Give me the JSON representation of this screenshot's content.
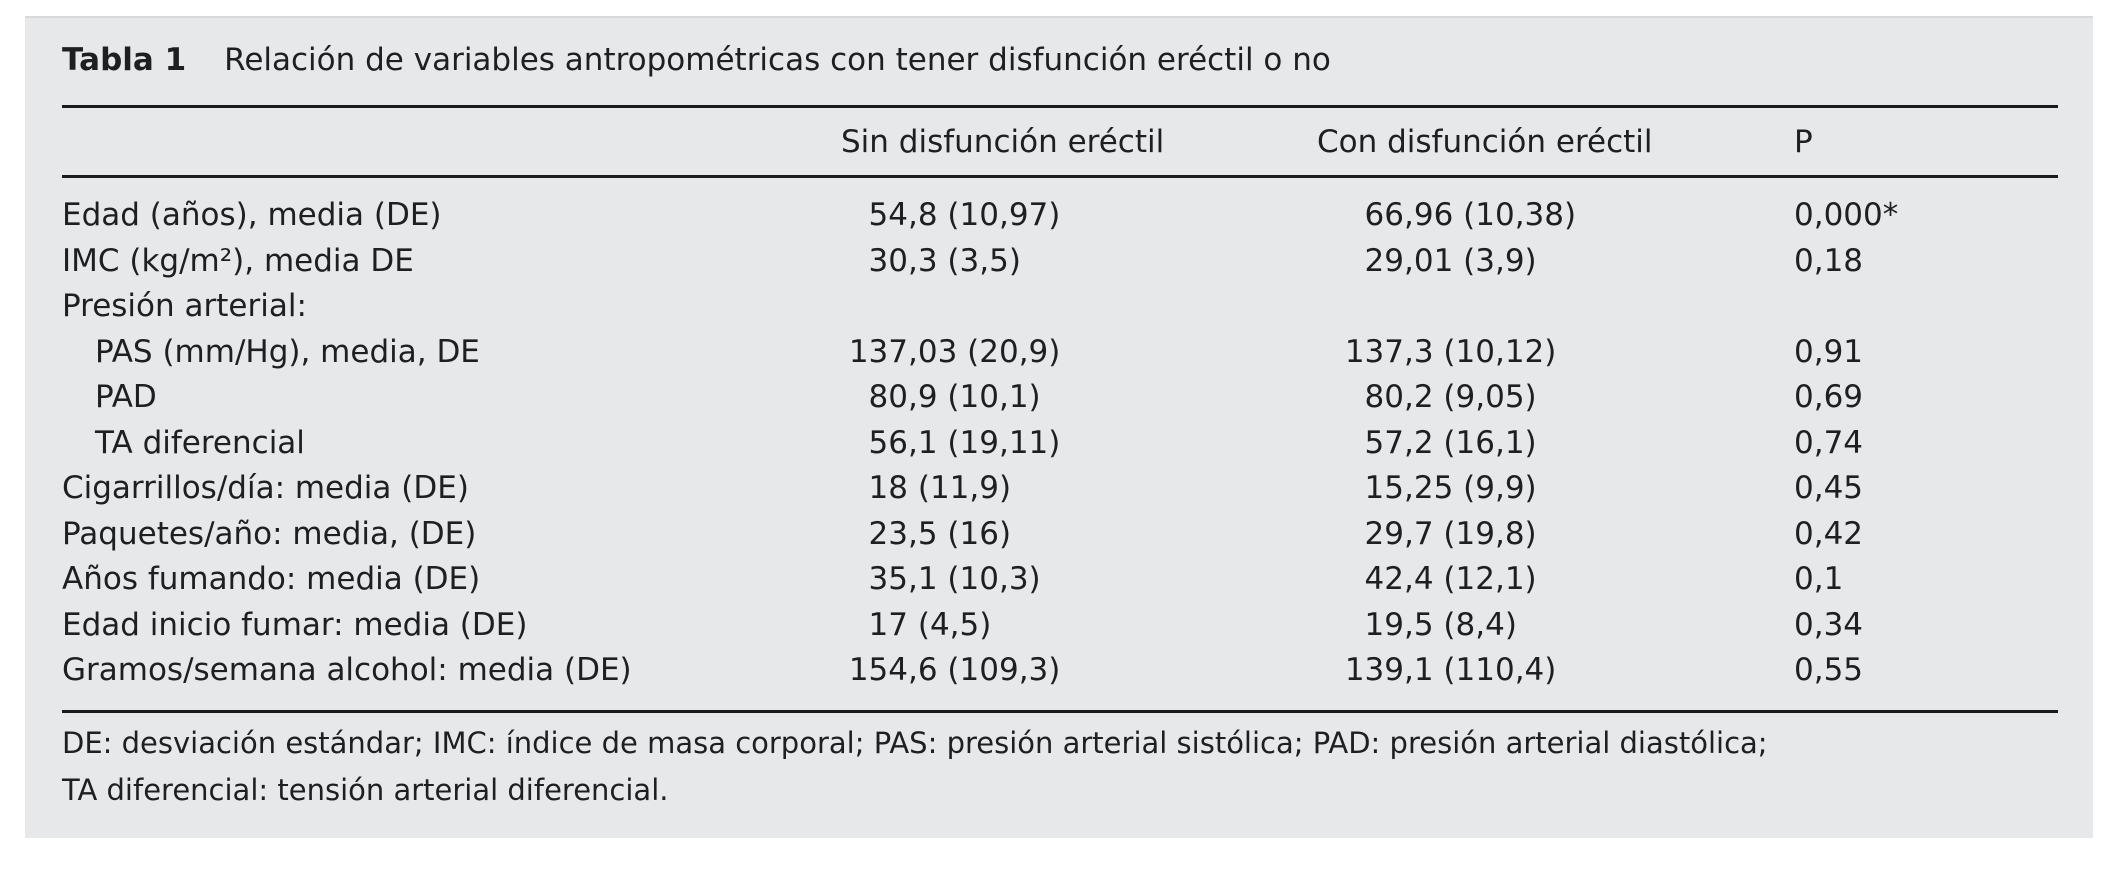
{
  "colors": {
    "panel_bg": "#e6e8e9",
    "text": "#1e1f21",
    "rule": "#1a1a1a"
  },
  "table": {
    "caption_label": "Tabla 1",
    "caption_text": "Relación de variables antropométricas con tener disfunción eréctil o no",
    "columns": [
      "Sin disfunción eréctil",
      "Con disfunción eréctil",
      "P"
    ],
    "rows": [
      {
        "label": "Edad (años), media (DE)",
        "sin": "54,8 (10,97)",
        "con": "66,96 (10,38)",
        "p": "0,000*"
      },
      {
        "label": "IMC (kg/m²), media DE",
        "sin": "30,3 (3,5)",
        "con": "29,01 (3,9)",
        "p": "0,18"
      },
      {
        "label": "Presión arterial:",
        "sin": "",
        "con": "",
        "p": ""
      },
      {
        "label": "PAS (mm/Hg), media, DE",
        "sin": "137,03 (20,9)",
        "con": "137,3 (10,12)",
        "p": "0,91"
      },
      {
        "label": "PAD",
        "sin": "80,9 (10,1)",
        "con": "80,2 (9,05)",
        "p": "0,69"
      },
      {
        "label": "TA diferencial",
        "sin": "56,1 (19,11)",
        "con": "57,2 (16,1)",
        "p": "0,74"
      },
      {
        "label": "Cigarrillos/día: media (DE)",
        "sin": "18 (11,9)",
        "con": "15,25 (9,9)",
        "p": "0,45"
      },
      {
        "label": "Paquetes/año: media, (DE)",
        "sin": "23,5 (16)",
        "con": "29,7 (19,8)",
        "p": "0,42"
      },
      {
        "label": "Años fumando: media (DE)",
        "sin": "35,1 (10,3)",
        "con": "42,4 (12,1)",
        "p": "0,1"
      },
      {
        "label": "Edad inicio fumar: media (DE)",
        "sin": "17 (4,5)",
        "con": "19,5 (8,4)",
        "p": "0,34"
      },
      {
        "label": "Gramos/semana alcohol: media (DE)",
        "sin": "154,6 (109,3)",
        "con": "139,1 (110,4)",
        "p": "0,55"
      }
    ],
    "footnote_lines": [
      "DE: desviación estándar; IMC: índice de masa corporal; PAS: presión arterial sistólica; PAD: presión arterial diastólica;",
      "TA diferencial: tensión arterial diferencial."
    ]
  }
}
